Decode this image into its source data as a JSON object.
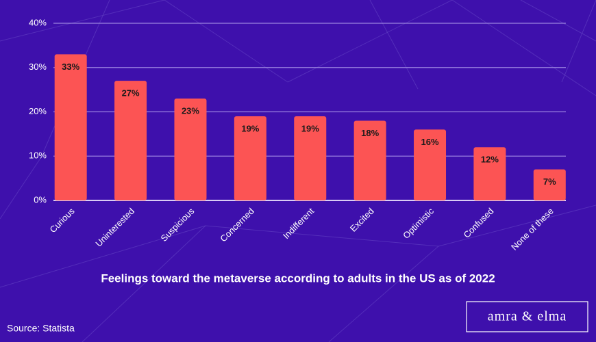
{
  "chart_data": {
    "type": "bar",
    "title": "Feelings toward the metaverse according to adults in the US as of 2022",
    "source": "Source: Statista",
    "logo": "amra & elma",
    "categories": [
      "Curious",
      "Uninterested",
      "Suspicious",
      "Concerned",
      "Indifferent",
      "Excited",
      "Optimistic",
      "Confused",
      "None of these"
    ],
    "values": [
      33,
      27,
      23,
      19,
      19,
      18,
      16,
      12,
      7
    ],
    "value_labels": [
      "33%",
      "27%",
      "23%",
      "19%",
      "19%",
      "18%",
      "16%",
      "12%",
      "7%"
    ],
    "color": "#fc5454",
    "ylim": [
      0,
      40
    ],
    "yticks": [
      {
        "value": 0,
        "label": "0%"
      },
      {
        "value": 10,
        "label": "10%"
      },
      {
        "value": 20,
        "label": "20%"
      },
      {
        "value": 30,
        "label": "30%"
      },
      {
        "value": 40,
        "label": "40%"
      }
    ],
    "grid": true
  }
}
